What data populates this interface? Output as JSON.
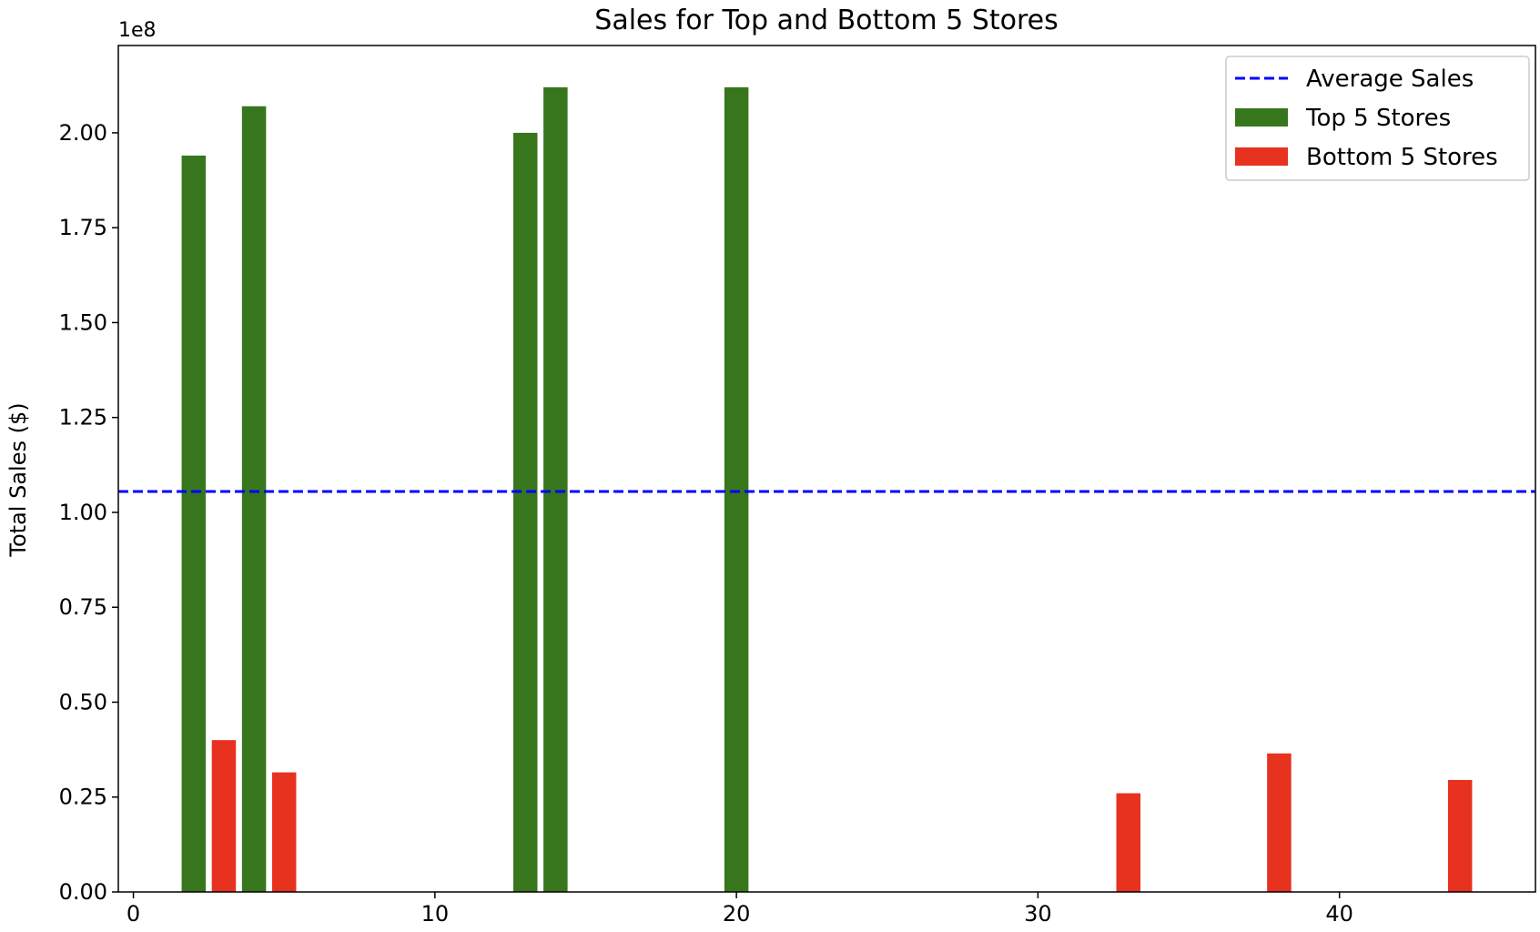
{
  "chart_data": {
    "type": "bar",
    "title": "Sales for Top and Bottom 5 Stores",
    "xlabel": "",
    "ylabel": "Total Sales ($)",
    "y_offset_label": "1e8",
    "xlim": [
      -0.5,
      46.5
    ],
    "ylim": [
      0,
      2.23
    ],
    "x_ticks": [
      0,
      10,
      20,
      30,
      40
    ],
    "y_ticks": [
      0,
      0.25,
      0.5,
      0.75,
      1.0,
      1.25,
      1.5,
      1.75,
      2.0
    ],
    "y_tick_labels": [
      "0.00",
      "0.25",
      "0.50",
      "0.75",
      "1.00",
      "1.25",
      "1.50",
      "1.75",
      "2.00"
    ],
    "y_unit_multiplier": 100000000,
    "grid": false,
    "legend_position": "top-right",
    "reference_line": {
      "name": "Average Sales",
      "y": 1.055,
      "color": "#0000ff",
      "style": "dashed"
    },
    "series": [
      {
        "name": "Top 5 Stores",
        "color": "#38761d",
        "x": [
          2,
          4,
          13,
          14,
          20
        ],
        "values": [
          1.94,
          2.07,
          2.0,
          2.12,
          2.12
        ]
      },
      {
        "name": "Bottom 5 Stores",
        "color": "#e6321f",
        "x": [
          3,
          5,
          33,
          38,
          44
        ],
        "values": [
          0.4,
          0.315,
          0.26,
          0.365,
          0.295
        ]
      }
    ]
  }
}
